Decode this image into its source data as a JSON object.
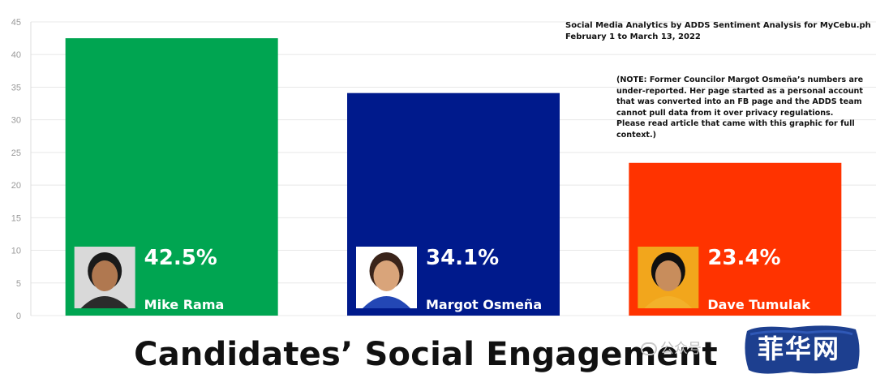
{
  "chart_data": {
    "type": "bar",
    "categories": [
      "Mike Rama",
      "Margot Osmeña",
      "Dave Tumulak"
    ],
    "values": [
      42.5,
      34.1,
      23.4
    ],
    "value_labels": [
      "42.5%",
      "34.1%",
      "23.4%"
    ],
    "colors": [
      "#00a551",
      "#001a8c",
      "#ff3300"
    ],
    "title": "Candidates’ Social Engagement",
    "ylim": [
      0,
      45
    ],
    "yticks": [
      0,
      5,
      10,
      15,
      20,
      25,
      30,
      35,
      40,
      45
    ],
    "grid": true
  },
  "annotations": {
    "source_line1": "Social Media Analytics by ADDS Sentiment Analysis for MyCebu.ph",
    "source_line2": "February 1 to March 13, 2022",
    "note": "(NOTE: Former Councilor Margot Osmeña’s numbers are under-reported. Her page started as a personal account that was converted into an FB page and the ADDS team cannot pull data from it over privacy regulations. Please read article that came with this graphic for full context.)"
  },
  "watermark": {
    "text": "公众号",
    "badge": "菲华网"
  }
}
